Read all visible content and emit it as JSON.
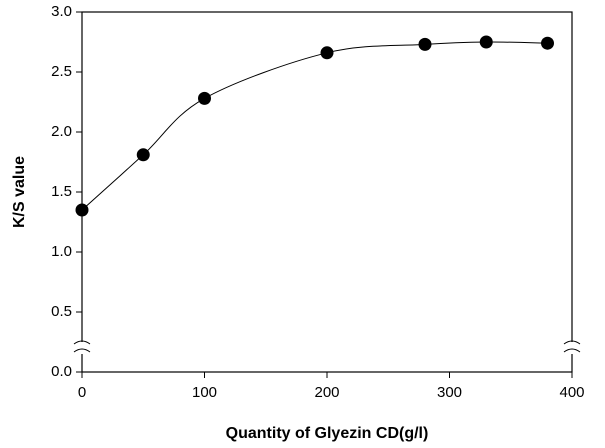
{
  "chart_data": {
    "type": "scatter-line",
    "x_label": "Quantity of Glyezin CD(g/l)",
    "y_label": "K/S value",
    "x": [
      0,
      50,
      100,
      200,
      280,
      330,
      380
    ],
    "series": [
      {
        "color": "#000000",
        "values": [
          1.35,
          1.81,
          2.28,
          2.66,
          2.73,
          2.75,
          2.74
        ]
      }
    ],
    "xlim": [
      0,
      400
    ],
    "ylim": [
      0,
      3
    ],
    "xticks": [
      0,
      100,
      200,
      300,
      400
    ],
    "yticks": [
      {
        "value": 0,
        "label": "0.0"
      },
      0.5,
      {
        "value": 1,
        "label": "1.0"
      },
      1.5,
      {
        "value": 2,
        "label": "2.0"
      },
      2.5,
      {
        "value": 3,
        "label": "3.0"
      }
    ],
    "grid": false
  }
}
